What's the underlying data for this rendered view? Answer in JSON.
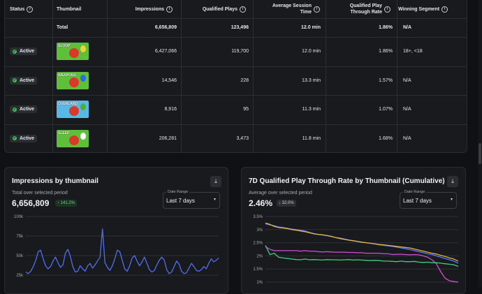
{
  "table": {
    "headers": {
      "status": "Status",
      "thumbnail": "Thumbnail",
      "impressions": "Impressions",
      "qualified_plays": "Qualified Plays",
      "avg_session_line1": "Average Session",
      "avg_session_line2": "Time",
      "qptr_line1": "Qualified Play",
      "qptr_line2": "Through Rate",
      "winning_segment": "Winning Segment"
    },
    "total": {
      "label": "Total",
      "impressions": "6,656,809",
      "qualified_plays": "123,496",
      "avg_session": "12.0 min",
      "qptr": "1.86%",
      "winning": "N/A"
    },
    "rows": [
      {
        "status": "Active",
        "thumb_text": "SLOOP",
        "impressions": "6,427,066",
        "qualified_plays": "119,700",
        "avg_session": "12.0 min",
        "qptr": "1.86%",
        "winning": "18+, <18",
        "thumb_colors": [
          "#5fbf3a",
          "#d83a2a",
          "#f2d23a"
        ]
      },
      {
        "status": "Active",
        "thumb_text": "WEAPONS",
        "impressions": "14,546",
        "qualified_plays": "228",
        "avg_session": "13.3 min",
        "qptr": "1.57%",
        "winning": "N/A",
        "thumb_colors": [
          "#5fbf3a",
          "#d83a2a",
          "#2f6be0"
        ]
      },
      {
        "status": "Active",
        "thumb_text": "OVERLAND",
        "impressions": "8,916",
        "qualified_plays": "95",
        "avg_session": "11.3 min",
        "qptr": "1.07%",
        "winning": "N/A",
        "thumb_colors": [
          "#58b8e8",
          "#d83a2a",
          "#4fae3a"
        ]
      },
      {
        "status": "Active",
        "thumb_text": "SLEEP",
        "impressions": "206,281",
        "qualified_plays": "3,473",
        "avg_session": "11.8 min",
        "qptr": "1.68%",
        "winning": "N/A",
        "thumb_colors": [
          "#5fbf3a",
          "#d83a2a",
          "#ffffff"
        ]
      }
    ]
  },
  "panel_left": {
    "title": "Impressions by thumbnail",
    "subtitle": "Total over selected period",
    "value": "6,656,809",
    "delta": "↑ 141.2%",
    "select_label": "Date Range",
    "select_value": "Last 7 days"
  },
  "panel_right": {
    "title": "7D Qualified Play Through Rate by Thumbnail (Cumulative)",
    "subtitle": "Average over selected period",
    "value": "2.46%",
    "delta": "↓ 32.0%",
    "select_label": "Date Range",
    "select_value": "Last 7 days"
  },
  "icons": {
    "info": "info-icon",
    "download": "download-icon",
    "chevron": "chevron-down-icon",
    "check": "check-circle-icon"
  },
  "chart_data": [
    {
      "type": "line",
      "title": "Impressions by thumbnail",
      "yticks": [
        "100k",
        "75k",
        "50k",
        "25k"
      ],
      "ylim": [
        25000,
        100000
      ],
      "series": [
        {
          "color": "#4f6ff0",
          "values": [
            29000,
            27000,
            30000,
            36000,
            44000,
            55000,
            57000,
            46000,
            37000,
            33000,
            36000,
            43000,
            48000,
            41000,
            35000,
            38000,
            53000,
            58000,
            49000,
            36000,
            29000,
            30000,
            37000,
            33000,
            30000,
            37000,
            40000,
            34000,
            38000,
            43000,
            48000,
            84000,
            41000,
            35000,
            31000,
            37000,
            46000,
            57000,
            55000,
            44000,
            33000,
            30000,
            37000,
            47000,
            50000,
            43000,
            37000,
            42000,
            48000,
            40000,
            32000,
            29000,
            31000,
            38000,
            44000,
            48000,
            44000,
            32000,
            27000,
            29000,
            36000,
            43000,
            39000,
            30000,
            27000,
            28000,
            34000,
            40000,
            36000,
            31000,
            30000,
            32000,
            36000,
            33000,
            40000,
            46000,
            42000,
            44000,
            47000
          ]
        }
      ]
    },
    {
      "type": "line",
      "title": "7D Qualified Play Through Rate by Thumbnail (Cumulative)",
      "yticks": [
        "3.5%",
        "3%",
        "2.5%",
        "2%",
        "1.5%",
        "1%"
      ],
      "ylim": [
        1,
        3.5
      ],
      "series": [
        {
          "color": "#5b7cff",
          "values": [
            3.22,
            3.18,
            3.15,
            3.1,
            3.08,
            3.05,
            3.02,
            3.0,
            2.98,
            2.95,
            2.9,
            2.85,
            2.82,
            2.8,
            2.78,
            2.75,
            2.7,
            2.68,
            2.64,
            2.6,
            2.57,
            2.55,
            2.52,
            2.5,
            2.48,
            2.45,
            2.42,
            2.4,
            2.38,
            2.36,
            2.33,
            2.3,
            2.27,
            2.24,
            2.2,
            2.16,
            2.12,
            2.08,
            2.05,
            2.0,
            1.95,
            1.9,
            1.85,
            1.8,
            1.72
          ]
        },
        {
          "color": "#e3b44a",
          "values": [
            3.25,
            3.2,
            3.12,
            3.08,
            3.06,
            3.04,
            3.0,
            2.98,
            2.95,
            2.92,
            2.88,
            2.84,
            2.82,
            2.8,
            2.77,
            2.74,
            2.7,
            2.66,
            2.63,
            2.6,
            2.58,
            2.55,
            2.52,
            2.5,
            2.48,
            2.46,
            2.43,
            2.42,
            2.4,
            2.38,
            2.36,
            2.34,
            2.32,
            2.3,
            2.26,
            2.22,
            2.18,
            2.14,
            2.1,
            2.07,
            2.02,
            1.98,
            1.92,
            1.88,
            1.8
          ]
        },
        {
          "color": "#d04fd6",
          "values": [
            2.35,
            2.25,
            2.2,
            2.2,
            2.2,
            2.2,
            2.2,
            2.2,
            2.18,
            2.2,
            2.18,
            2.18,
            2.16,
            2.15,
            2.16,
            2.15,
            2.14,
            2.14,
            2.14,
            2.13,
            2.13,
            2.12,
            2.12,
            2.1,
            2.1,
            2.1,
            2.1,
            2.08,
            2.08,
            2.05,
            2.06,
            2.06,
            2.05,
            2.04,
            2.05,
            2.04,
            2.0,
            1.95,
            1.85,
            1.7,
            1.4,
            1.15,
            1.05,
            1.02,
            1.0
          ]
        },
        {
          "color": "#3fcf7a",
          "values": [
            2.4,
            2.05,
            2.1,
            1.95,
            1.92,
            1.9,
            1.88,
            1.86,
            1.85,
            1.88,
            1.85,
            1.86,
            1.85,
            1.84,
            1.86,
            1.85,
            1.85,
            1.84,
            1.85,
            1.86,
            1.84,
            1.85,
            1.84,
            1.83,
            1.82,
            1.83,
            1.82,
            1.8,
            1.8,
            1.79,
            1.78,
            1.8,
            1.78,
            1.78,
            1.79,
            1.76,
            1.75,
            1.76,
            1.74,
            1.74,
            1.72,
            1.7,
            1.68,
            1.66,
            1.6
          ]
        }
      ]
    }
  ]
}
